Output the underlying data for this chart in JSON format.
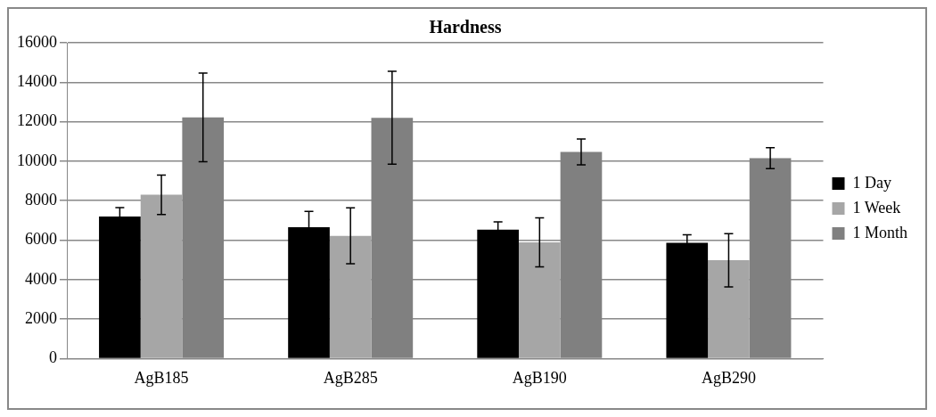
{
  "chart_data": {
    "type": "bar",
    "title": "Hardness",
    "categories": [
      "AgB185",
      "AgB285",
      "AgB190",
      "AgB290"
    ],
    "series": [
      {
        "name": "1 Day",
        "color": "#000000",
        "values": [
          7200,
          6660,
          6530,
          5870
        ],
        "errors": [
          450,
          800,
          400,
          400
        ]
      },
      {
        "name": "1 Week",
        "color": "#a6a6a6",
        "values": [
          8300,
          6220,
          5890,
          4980
        ],
        "errors": [
          1000,
          1420,
          1240,
          1350
        ]
      },
      {
        "name": "1 Month",
        "color": "#808080",
        "values": [
          12220,
          12200,
          10470,
          10150
        ],
        "errors": [
          2250,
          2350,
          650,
          530
        ]
      }
    ],
    "ylim": [
      0,
      16000
    ],
    "yticks": [
      0,
      2000,
      4000,
      6000,
      8000,
      10000,
      12000,
      14000,
      16000
    ],
    "grid": "y",
    "legend": "right"
  }
}
